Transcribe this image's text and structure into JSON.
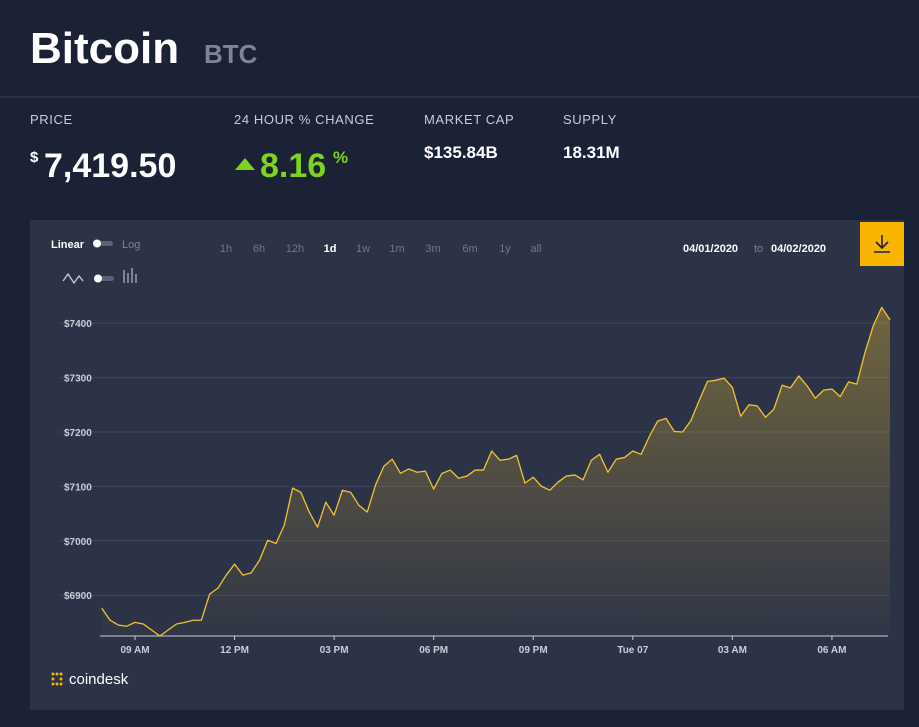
{
  "header": {
    "title": "Bitcoin",
    "symbol": "BTC"
  },
  "stats": [
    {
      "label": "PRICE",
      "currency": "$",
      "value": "7,419.50"
    },
    {
      "label": "24 HOUR % CHANGE",
      "value": "8.16",
      "unit": "%"
    },
    {
      "label": "MARKET CAP",
      "value": "$135.84B"
    },
    {
      "label": "SUPPLY",
      "value": "18.31M"
    }
  ],
  "controls": {
    "scale": [
      "Linear",
      "Log"
    ],
    "ranges": [
      "1h",
      "6h",
      "12h",
      "1d",
      "1w",
      "1m",
      "3m",
      "6m",
      "1y",
      "all"
    ],
    "active_range": 3,
    "date_from": "04/01/2020",
    "date_sep": "to",
    "date_to": "04/02/2020"
  },
  "logo": "coindesk",
  "chart_data": {
    "type": "line",
    "x": [
      8,
      8.25,
      8.5,
      8.75,
      9,
      9.25,
      9.5,
      9.75,
      10,
      10.25,
      10.5,
      10.75,
      11,
      11.25,
      11.5,
      11.75,
      12,
      12.25,
      12.5,
      12.75,
      13,
      13.25,
      13.5,
      13.75,
      14,
      14.25,
      14.5,
      14.75,
      15,
      15.25,
      15.5,
      15.75,
      16,
      16.25,
      16.5,
      16.75,
      17,
      17.25,
      17.5,
      17.75,
      18,
      18.25,
      18.5,
      18.75,
      19,
      19.25,
      19.5,
      19.75,
      20,
      20.25,
      20.5,
      20.75,
      21,
      21.25,
      21.5,
      21.75,
      22,
      22.25,
      22.5,
      22.75,
      23,
      23.25,
      23.5,
      23.75,
      24,
      24.25,
      24.5,
      24.75,
      25,
      25.25,
      25.5,
      25.75,
      26,
      26.25,
      26.5,
      26.75,
      27,
      27.25,
      27.5,
      27.75,
      28,
      28.25,
      28.5,
      28.75,
      29,
      29.25,
      29.5,
      29.75,
      30,
      30.25,
      30.5,
      30.75,
      31,
      31.25,
      31.5,
      31.75
    ],
    "series": [
      {
        "name": "BTC",
        "color": "#f2c230",
        "values": [
          6876,
          6854,
          6845,
          6843,
          6850,
          6847,
          6836,
          6825,
          6836,
          6847,
          6850,
          6854,
          6854,
          6902,
          6913,
          6937,
          6957,
          6937,
          6941,
          6964,
          7001,
          6995,
          7029,
          7097,
          7089,
          7053,
          7025,
          7071,
          7047,
          7093,
          7089,
          7065,
          7053,
          7103,
          7137,
          7150,
          7124,
          7132,
          7126,
          7128,
          7095,
          7124,
          7130,
          7115,
          7119,
          7130,
          7130,
          7165,
          7148,
          7150,
          7157,
          7106,
          7117,
          7100,
          7093,
          7108,
          7119,
          7121,
          7112,
          7148,
          7159,
          7126,
          7150,
          7153,
          7165,
          7159,
          7192,
          7220,
          7225,
          7201,
          7200,
          7221,
          7258,
          7293,
          7295,
          7299,
          7282,
          7229,
          7250,
          7248,
          7227,
          7242,
          7286,
          7281,
          7303,
          7285,
          7262,
          7277,
          7279,
          7265,
          7292,
          7288,
          7347,
          7396,
          7429,
          7406
        ]
      }
    ],
    "xlim": [
      8,
      31.75
    ],
    "xticks": [
      {
        "value": 9,
        "label": "09 AM"
      },
      {
        "value": 12,
        "label": "12 PM"
      },
      {
        "value": 15,
        "label": "03 PM"
      },
      {
        "value": 18,
        "label": "06 PM"
      },
      {
        "value": 21,
        "label": "09 PM"
      },
      {
        "value": 24,
        "label": "Tue 07"
      },
      {
        "value": 27,
        "label": "03 AM"
      },
      {
        "value": 30,
        "label": "06 AM"
      }
    ],
    "ylim": [
      6825,
      7461
    ],
    "yticks": [
      {
        "value": 6900,
        "label": "$6900"
      },
      {
        "value": 7000,
        "label": "$7000"
      },
      {
        "value": 7100,
        "label": "$7100"
      },
      {
        "value": 7200,
        "label": "$7200"
      },
      {
        "value": 7300,
        "label": "$7300"
      },
      {
        "value": 7400,
        "label": "$7400"
      }
    ],
    "grid": true
  }
}
